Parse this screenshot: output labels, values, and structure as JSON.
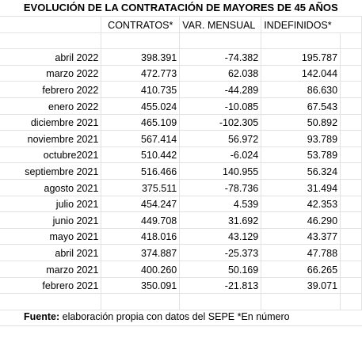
{
  "title": "EVOLUCIÓN DE LA CONTRATACIÓN DE MAYORES DE 45 AÑOS",
  "headers": {
    "contratos": "CONTRATOS*",
    "var_mensual": "VAR. MENSUAL",
    "indefinidos": "INDEFINIDOS*"
  },
  "rows": [
    {
      "month": "abril 2022",
      "contratos": "398.391",
      "var": "-74.382",
      "indefinidos": "195.787"
    },
    {
      "month": "marzo 2022",
      "contratos": "472.773",
      "var": "62.038",
      "indefinidos": "142.044"
    },
    {
      "month": "febrero 2022",
      "contratos": "410.735",
      "var": "-44.289",
      "indefinidos": "86.630"
    },
    {
      "month": "enero 2022",
      "contratos": "455.024",
      "var": "-10.085",
      "indefinidos": "67.543"
    },
    {
      "month": "diciembre 2021",
      "contratos": "465.109",
      "var": "-102.305",
      "indefinidos": "50.892"
    },
    {
      "month": "noviembre 2021",
      "contratos": "567.414",
      "var": "56.972",
      "indefinidos": "93.789"
    },
    {
      "month": "octubre2021",
      "contratos": "510.442",
      "var": "-6.024",
      "indefinidos": "53.789"
    },
    {
      "month": "septiembre 2021",
      "contratos": "516.466",
      "var": "140.955",
      "indefinidos": "56.324"
    },
    {
      "month": "agosto 2021",
      "contratos": "375.511",
      "var": "-78.736",
      "indefinidos": "31.494"
    },
    {
      "month": "julio 2021",
      "contratos": "454.247",
      "var": "4.539",
      "indefinidos": "42.353"
    },
    {
      "month": "junio 2021",
      "contratos": "449.708",
      "var": "31.692",
      "indefinidos": "46.290"
    },
    {
      "month": "mayo 2021",
      "contratos": "418.016",
      "var": "43.129",
      "indefinidos": "43.377"
    },
    {
      "month": "abril 2021",
      "contratos": "374.887",
      "var": "-25.373",
      "indefinidos": "47.788"
    },
    {
      "month": "marzo 2021",
      "contratos": "400.260",
      "var": "50.169",
      "indefinidos": "66.265"
    },
    {
      "month": "febrero 2021",
      "contratos": "350.091",
      "var": "-21.813",
      "indefinidos": "39.071"
    }
  ],
  "footer": {
    "label": "Fuente:",
    "text": " elaboración propia con datos del SEPE *En número"
  }
}
